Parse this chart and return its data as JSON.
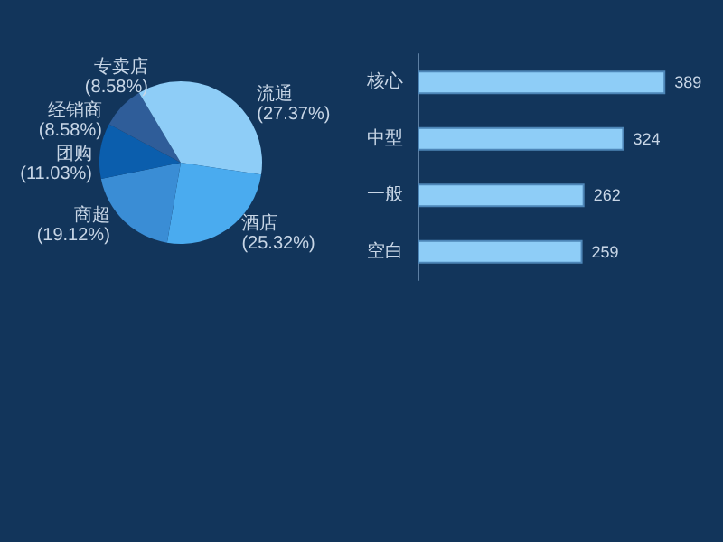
{
  "chart_data": [
    {
      "type": "pie",
      "categories": [
        "流通",
        "酒店",
        "商超",
        "团购",
        "经销商",
        "专卖店"
      ],
      "values": [
        27.37,
        25.32,
        19.12,
        11.03,
        8.58,
        8.58
      ],
      "colors": [
        "#8ecdf7",
        "#4aabef",
        "#3a8dd5",
        "#0b5ead",
        "#2f5d99",
        "#8ecdf7"
      ],
      "value_labels": [
        "(27.37%)",
        "(25.32%)",
        "(19.12%)",
        "(11.03%)",
        "(8.58%)",
        "(8.58%)"
      ]
    },
    {
      "type": "bar",
      "orientation": "horizontal",
      "categories": [
        "核心",
        "中型",
        "一般",
        "空白"
      ],
      "values": [
        389,
        324,
        262,
        259
      ],
      "color": "#8ecdf7",
      "data_labels": true
    }
  ]
}
